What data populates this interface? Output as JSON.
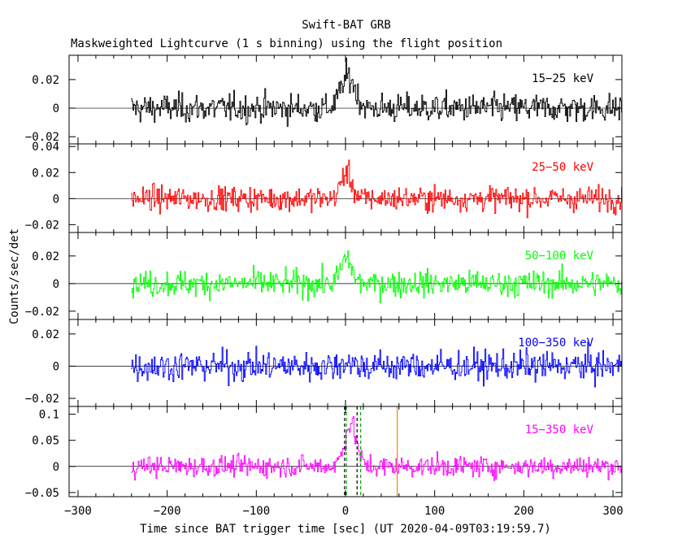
{
  "chart_data": {
    "type": "line",
    "title": "Swift-BAT GRB",
    "subtitle": "Maskweighted Lightcurve (1 s binning) using the flight position",
    "xlabel": "Time since BAT trigger time [sec] (UT 2020-04-09T03:19:59.7)",
    "ylabel": "Counts/sec/det",
    "xlim": [
      -310,
      310
    ],
    "x_ticks": [
      -300,
      -200,
      -100,
      0,
      100,
      200,
      300
    ],
    "data_start": -240,
    "data_end": 310,
    "grid": false,
    "panels": [
      {
        "label": "15−25 keV",
        "color": "#000000",
        "ylim": [
          -0.025,
          0.037
        ],
        "y_ticks": [
          {
            "v": 0.02,
            "t": "0.02"
          },
          {
            "v": 0,
            "t": "0"
          },
          {
            "v": -0.02,
            "t": "−0.02"
          }
        ],
        "noise": 0.008,
        "peak": 0.022,
        "peak_t": 3,
        "peak_w": 8
      },
      {
        "label": "25−50 keV",
        "color": "#ff0000",
        "ylim": [
          -0.026,
          0.042
        ],
        "y_ticks": [
          {
            "v": 0.04,
            "t": "0.04"
          },
          {
            "v": 0.02,
            "t": "0.02"
          },
          {
            "v": 0,
            "t": "0"
          },
          {
            "v": -0.02,
            "t": "−0.02"
          }
        ],
        "noise": 0.0075,
        "peak": 0.02,
        "peak_t": 1,
        "peak_w": 6
      },
      {
        "label": "50−100 keV",
        "color": "#00ff00",
        "ylim": [
          -0.026,
          0.037
        ],
        "y_ticks": [
          {
            "v": 0.02,
            "t": "0.02"
          },
          {
            "v": 0,
            "t": "0"
          },
          {
            "v": -0.02,
            "t": "−0.02"
          }
        ],
        "noise": 0.0075,
        "peak": 0.018,
        "peak_t": 1,
        "peak_w": 6
      },
      {
        "label": "100−350 keV",
        "color": "#0000ff",
        "ylim": [
          -0.025,
          0.029
        ],
        "y_ticks": [
          {
            "v": 0.02,
            "t": "0.02"
          },
          {
            "v": 0,
            "t": "0"
          },
          {
            "v": -0.02,
            "t": "−0.02"
          }
        ],
        "noise": 0.0075,
        "peak": 0.003,
        "peak_t": 1,
        "peak_w": 6
      },
      {
        "label": "15−350 keV",
        "color": "#ff00ff",
        "ylim": [
          -0.058,
          0.115
        ],
        "y_ticks": [
          {
            "v": 0.1,
            "t": "0.1"
          },
          {
            "v": 0.05,
            "t": "0.05"
          },
          {
            "v": 0,
            "t": "0"
          },
          {
            "v": -0.05,
            "t": "−0.05"
          }
        ],
        "noise": 0.016,
        "peak": 0.065,
        "peak_t": 5,
        "peak_w": 7,
        "vlines": [
          {
            "x": -1,
            "color": "#000000",
            "dash": true
          },
          {
            "x": 1,
            "color": "#00a000",
            "dash": true
          },
          {
            "x": 13,
            "color": "#000000",
            "dash": true
          },
          {
            "x": 17,
            "color": "#00a000",
            "dash": true
          },
          {
            "x": 58,
            "color": "#ff8000",
            "dash": false
          }
        ]
      }
    ]
  }
}
